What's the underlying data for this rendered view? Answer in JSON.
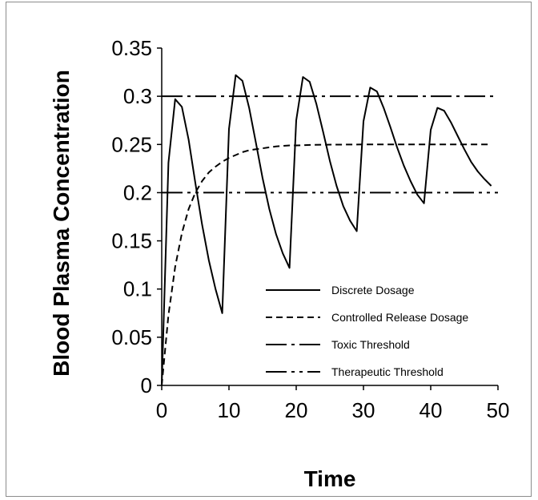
{
  "chart_data": {
    "type": "line",
    "title": "",
    "xlabel": "Time",
    "ylabel": "Blood Plasma Concentration",
    "xlim": [
      0,
      50
    ],
    "ylim": [
      0,
      0.35
    ],
    "x_ticks": [
      "0",
      "10",
      "20",
      "30",
      "40",
      "50"
    ],
    "y_ticks": [
      "0",
      "0.05",
      "0.1",
      "0.15",
      "0.2",
      "0.25",
      "0.3",
      "0.35"
    ],
    "grid": false,
    "legend_position": "center-right",
    "series": [
      {
        "name": "Discrete Dosage",
        "dash": "solid",
        "x": [
          0,
          1,
          2,
          3,
          4,
          5,
          6,
          7,
          8,
          9,
          10,
          11,
          12,
          13,
          14,
          15,
          16,
          17,
          18,
          19,
          20,
          21,
          22,
          23,
          24,
          25,
          26,
          27,
          28,
          29,
          30,
          31,
          32,
          33,
          34,
          35,
          36,
          37,
          38,
          39,
          40,
          41,
          42,
          43,
          44,
          45,
          46,
          47,
          48,
          49
        ],
        "y": [
          0,
          0.231,
          0.297,
          0.289,
          0.255,
          0.21,
          0.167,
          0.13,
          0.1,
          0.075,
          0.266,
          0.322,
          0.316,
          0.288,
          0.252,
          0.215,
          0.183,
          0.157,
          0.137,
          0.122,
          0.275,
          0.32,
          0.315,
          0.292,
          0.263,
          0.233,
          0.207,
          0.186,
          0.171,
          0.16,
          0.274,
          0.309,
          0.305,
          0.288,
          0.268,
          0.247,
          0.228,
          0.212,
          0.198,
          0.189,
          0.265,
          0.288,
          0.285,
          0.273,
          0.259,
          0.245,
          0.232,
          0.222,
          0.214,
          0.207
        ]
      },
      {
        "name": "Controlled Release Dosage",
        "dash": "dashed",
        "x": [
          0,
          1,
          2,
          3,
          4,
          5,
          6,
          7,
          8,
          9,
          10,
          11,
          12,
          13,
          14,
          15,
          16,
          17,
          18,
          19,
          20,
          22,
          24,
          26,
          28,
          30,
          32,
          34,
          36,
          38,
          40,
          42,
          44,
          46,
          48,
          49
        ],
        "y": [
          0,
          0.073,
          0.123,
          0.158,
          0.183,
          0.2,
          0.212,
          0.221,
          0.227,
          0.232,
          0.236,
          0.239,
          0.242,
          0.244,
          0.245,
          0.246,
          0.247,
          0.248,
          0.2485,
          0.249,
          0.249,
          0.2495,
          0.2497,
          0.2498,
          0.2499,
          0.25,
          0.25,
          0.25,
          0.25,
          0.25,
          0.25,
          0.25,
          0.25,
          0.25,
          0.25,
          0.25
        ]
      },
      {
        "name": "Toxic Threshold",
        "dash": "dash-dot",
        "x": [
          0,
          50
        ],
        "y": [
          0.3,
          0.3
        ]
      },
      {
        "name": "Therapeutic Threshold",
        "dash": "dash-dot-dot",
        "x": [
          0,
          50
        ],
        "y": [
          0.2,
          0.2
        ]
      }
    ]
  }
}
